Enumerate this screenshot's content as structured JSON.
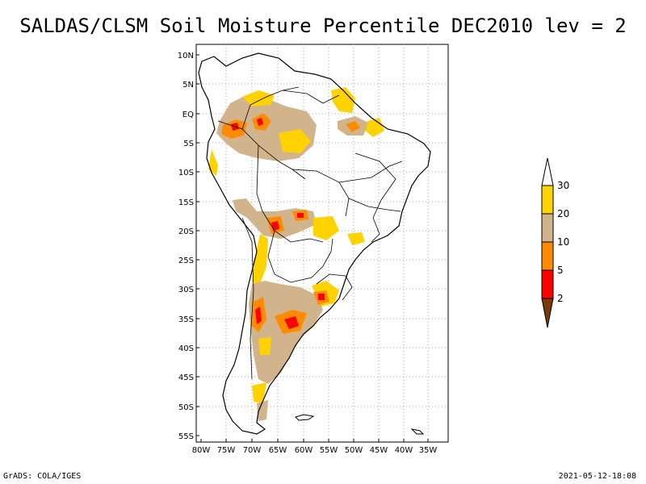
{
  "title": "SALDAS/CLSM Soil Moisture Percentile DEC2010 lev = 2",
  "footer": {
    "left": "GrADS: COLA/IGES",
    "right": "2021-05-12-18:08"
  },
  "axes": {
    "lat_labels": [
      "10N",
      "5N",
      "EQ",
      "5S",
      "10S",
      "15S",
      "20S",
      "25S",
      "30S",
      "35S",
      "40S",
      "45S",
      "50S",
      "55S"
    ],
    "lon_labels": [
      "80W",
      "75W",
      "70W",
      "65W",
      "60W",
      "55W",
      "50W",
      "45W",
      "40W",
      "35W"
    ]
  },
  "legend": {
    "labels": [
      "30",
      "20",
      "10",
      "5",
      "2"
    ],
    "colors": {
      "above30": "#ffffff",
      "band20_30": "#ffd200",
      "band10_20": "#d2b48c",
      "band5_10": "#ff8c00",
      "band2_5": "#ff0000",
      "below2": "#7a3b0a"
    }
  }
}
